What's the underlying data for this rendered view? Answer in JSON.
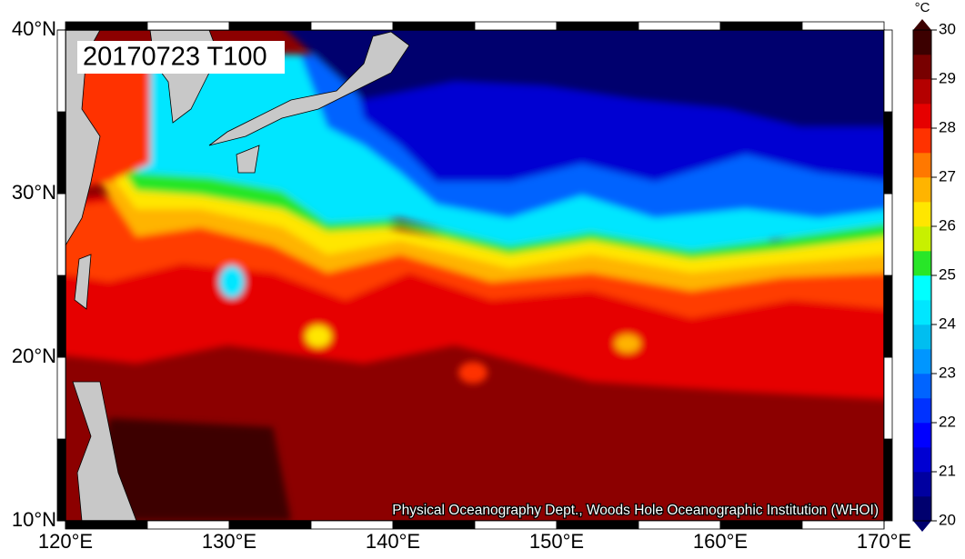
{
  "map": {
    "title": "20170723 T100",
    "credit": "Physical Oceanography Dept., Woods Hole Oceanographic Institution (WHOI)",
    "xlim": [
      120,
      170
    ],
    "ylim": [
      10,
      40
    ],
    "lon_ticks": [
      {
        "value": 120,
        "label": "120°E"
      },
      {
        "value": 130,
        "label": "130°E"
      },
      {
        "value": 140,
        "label": "140°E"
      },
      {
        "value": 150,
        "label": "150°E"
      },
      {
        "value": 160,
        "label": "160°E"
      },
      {
        "value": 170,
        "label": "170°E"
      }
    ],
    "lat_ticks": [
      {
        "value": 10,
        "label": "10°N"
      },
      {
        "value": 20,
        "label": "20°N"
      },
      {
        "value": 30,
        "label": "30°N"
      },
      {
        "value": 40,
        "label": "40°N"
      }
    ],
    "colorbar": {
      "unit": "°C",
      "lim": [
        20,
        30
      ],
      "ticks": [
        20,
        21,
        22,
        23,
        24,
        25,
        26,
        27,
        28,
        29,
        30
      ],
      "colors": [
        "#00006e",
        "#0000a0",
        "#0000d2",
        "#0000ff",
        "#0032ff",
        "#0064ff",
        "#0096ff",
        "#00bef0",
        "#00e6ff",
        "#00ffff",
        "#28e628",
        "#c8f000",
        "#ffe600",
        "#ffb400",
        "#ff7800",
        "#ff3200",
        "#e60000",
        "#b40000",
        "#780000",
        "#3c0000"
      ]
    }
  }
}
